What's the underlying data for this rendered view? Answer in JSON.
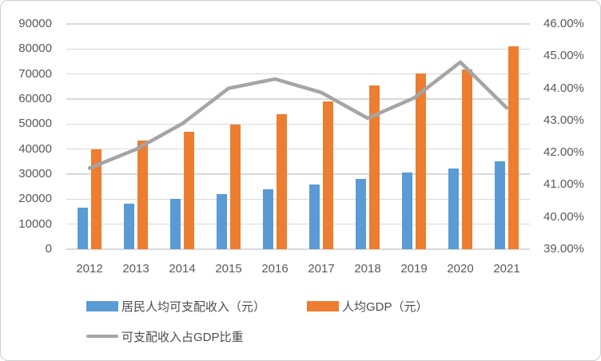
{
  "chart_data": {
    "type": "bar",
    "subtype": "grouped-bars-with-line",
    "title": "",
    "categories": [
      "2012",
      "2013",
      "2014",
      "2015",
      "2016",
      "2017",
      "2018",
      "2019",
      "2020",
      "2021"
    ],
    "series": [
      {
        "name": "居民人均可支配收入（元）",
        "type": "bar",
        "axis": "left",
        "color": "#5b9bd5",
        "values": [
          16510,
          18311,
          20167,
          21966,
          23821,
          25974,
          28228,
          30733,
          32189,
          35128
        ]
      },
      {
        "name": "人均GDP（元）",
        "type": "bar",
        "axis": "left",
        "color": "#ed7d31",
        "values": [
          39771,
          43497,
          47005,
          49922,
          53783,
          59201,
          65534,
          70328,
          71828,
          80962
        ]
      },
      {
        "name": "可支配收入占GDP比重",
        "type": "line",
        "axis": "right",
        "color": "#a5a5a5",
        "values": [
          41.52,
          42.1,
          42.9,
          44.0,
          44.29,
          43.87,
          43.07,
          43.7,
          44.81,
          43.39
        ]
      }
    ],
    "left_axis": {
      "min": 0,
      "max": 90000,
      "step": 10000,
      "tick_labels": [
        "0",
        "10000",
        "20000",
        "30000",
        "40000",
        "50000",
        "60000",
        "70000",
        "80000",
        "90000"
      ]
    },
    "right_axis": {
      "min": 39,
      "max": 46,
      "step": 1,
      "tick_labels": [
        "39.00%",
        "40.00%",
        "41.00%",
        "42.00%",
        "43.00%",
        "44.00%",
        "45.00%",
        "46.00%"
      ]
    },
    "grid": true,
    "legend_position": "bottom-left"
  }
}
